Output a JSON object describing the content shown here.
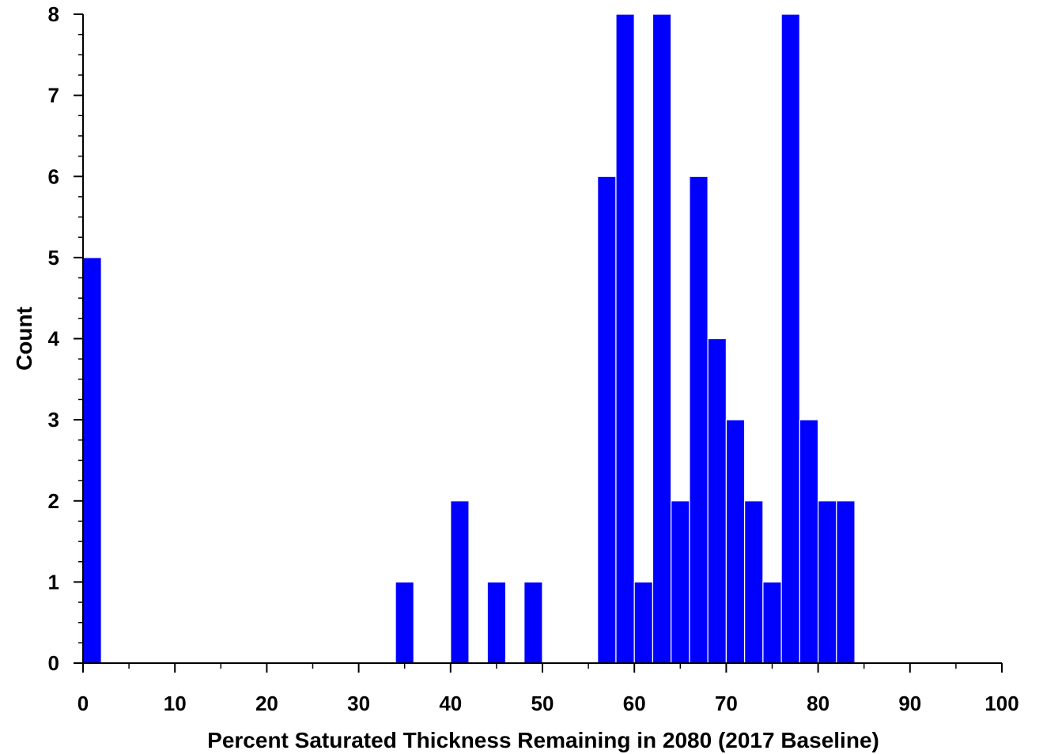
{
  "chart_data": {
    "type": "bar",
    "subtype": "histogram",
    "xlabel": "Percent Saturated Thickness Remaining in 2080 (2017 Baseline)",
    "ylabel": "Count",
    "xlim": [
      0,
      100
    ],
    "ylim": [
      0,
      8
    ],
    "bin_width": 2,
    "x_major_ticks": [
      0,
      10,
      20,
      30,
      40,
      50,
      60,
      70,
      80,
      90,
      100
    ],
    "x_tick_labels": [
      "0",
      "10",
      "20",
      "30",
      "40",
      "50",
      "60",
      "70",
      "80",
      "90",
      "100"
    ],
    "y_major_ticks": [
      0,
      1,
      2,
      3,
      4,
      5,
      6,
      7,
      8
    ],
    "y_tick_labels": [
      "0",
      "1",
      "2",
      "3",
      "4",
      "5",
      "6",
      "7",
      "8"
    ],
    "grid": false,
    "bar_color": "#0000FF",
    "bar_edge_color": "#FFFFFF",
    "bins": [
      {
        "start": 0,
        "end": 2,
        "count": 5
      },
      {
        "start": 34,
        "end": 36,
        "count": 1
      },
      {
        "start": 40,
        "end": 42,
        "count": 2
      },
      {
        "start": 44,
        "end": 46,
        "count": 1
      },
      {
        "start": 48,
        "end": 50,
        "count": 1
      },
      {
        "start": 56,
        "end": 58,
        "count": 6
      },
      {
        "start": 58,
        "end": 60,
        "count": 8
      },
      {
        "start": 60,
        "end": 62,
        "count": 1
      },
      {
        "start": 62,
        "end": 64,
        "count": 8
      },
      {
        "start": 64,
        "end": 66,
        "count": 2
      },
      {
        "start": 66,
        "end": 68,
        "count": 6
      },
      {
        "start": 68,
        "end": 70,
        "count": 4
      },
      {
        "start": 70,
        "end": 72,
        "count": 3
      },
      {
        "start": 72,
        "end": 74,
        "count": 2
      },
      {
        "start": 74,
        "end": 76,
        "count": 1
      },
      {
        "start": 76,
        "end": 78,
        "count": 8
      },
      {
        "start": 78,
        "end": 80,
        "count": 3
      },
      {
        "start": 80,
        "end": 82,
        "count": 2
      },
      {
        "start": 82,
        "end": 84,
        "count": 2
      }
    ]
  }
}
